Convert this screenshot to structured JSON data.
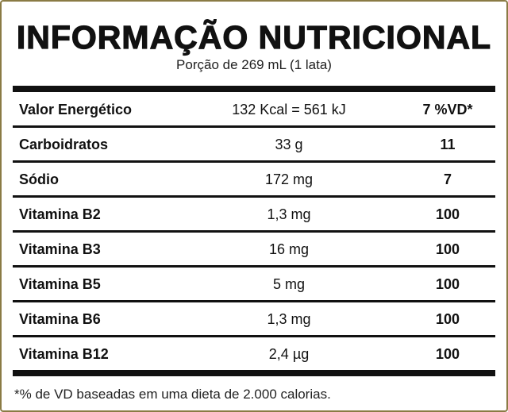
{
  "header": {
    "title": "INFORMAÇÃO NUTRICIONAL",
    "subtitle": "Porção de 269 mL (1 lata)"
  },
  "table": {
    "rows": [
      [
        "Valor Energético",
        "132 Kcal = 561 kJ",
        "7 %VD*"
      ],
      [
        "Carboidratos",
        "33 g",
        "11"
      ],
      [
        "Sódio",
        "172 mg",
        "7"
      ],
      [
        "Vitamina B2",
        "1,3 mg",
        "100"
      ],
      [
        "Vitamina B3",
        "16 mg",
        "100"
      ],
      [
        "Vitamina B5",
        "5 mg",
        "100"
      ],
      [
        "Vitamina B6",
        "1,3 mg",
        "100"
      ],
      [
        "Vitamina B12",
        "2,4 µg",
        "100"
      ]
    ]
  },
  "footnote": "*% de VD baseadas em uma dieta de 2.000 calorias."
}
